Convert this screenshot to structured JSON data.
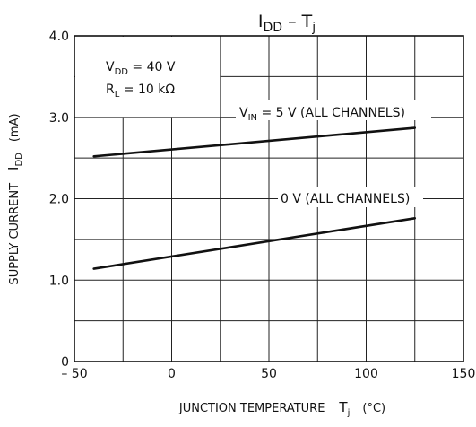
{
  "chart_data": {
    "type": "line",
    "title": {
      "main": "I",
      "sub": "DD",
      "rest": " – T",
      "sub2": "j"
    },
    "xlabel": {
      "text": "JUNCTION TEMPERATURE",
      "sym": "T",
      "sub": "j",
      "unit": "(°C)"
    },
    "ylabel": {
      "text": "SUPPLY CURRENT",
      "sym": "I",
      "sub": "DD",
      "unit": "(mA)"
    },
    "xlim": [
      -50,
      150
    ],
    "ylim": [
      0,
      4.0
    ],
    "x_ticks": [
      -50,
      0,
      50,
      100,
      150
    ],
    "x_tick_labels": [
      "– 50",
      "0",
      "50",
      "100",
      "150"
    ],
    "y_ticks": [
      0,
      1.0,
      2.0,
      3.0,
      4.0
    ],
    "y_tick_labels": [
      "0",
      "1.0",
      "2.0",
      "3.0",
      "4.0"
    ],
    "grid": true,
    "conditions": [
      {
        "sym": "V",
        "sub": "DD",
        "rest": " = 40 V"
      },
      {
        "sym": "R",
        "sub": "L",
        "rest": " = 10 kΩ"
      }
    ],
    "series": [
      {
        "name": "V_IN = 5 V (ALL CHANNELS)",
        "label": {
          "sym": "V",
          "sub": "IN",
          "rest": " = 5 V (ALL CHANNELS)"
        },
        "x": [
          -40,
          125
        ],
        "y": [
          2.52,
          2.87
        ]
      },
      {
        "name": "0 V (ALL CHANNELS)",
        "label": {
          "sym": "",
          "sub": "",
          "rest": "0 V (ALL CHANNELS)"
        },
        "x": [
          -40,
          125
        ],
        "y": [
          1.14,
          1.76
        ]
      }
    ]
  }
}
